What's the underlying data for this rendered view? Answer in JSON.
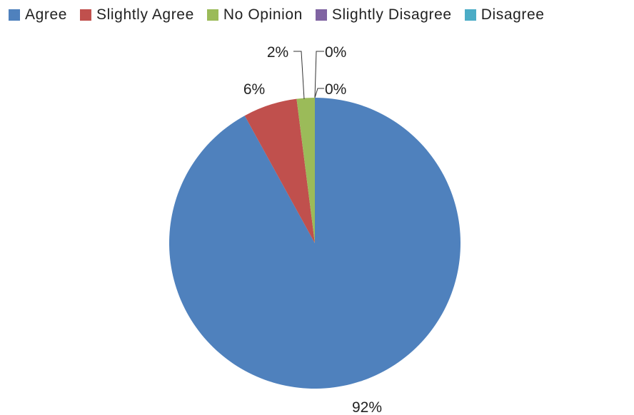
{
  "chart_data": {
    "type": "pie",
    "title": "",
    "categories": [
      "Agree",
      "Slightly Agree",
      "No Opinion",
      "Slightly Disagree",
      "Disagree"
    ],
    "values": [
      92,
      6,
      2,
      0,
      0
    ],
    "labels": [
      "92%",
      "6%",
      "2%",
      "0%",
      "0%"
    ],
    "colors": [
      "#4F81BD",
      "#C0504D",
      "#9BBB59",
      "#8064A2",
      "#4BACC6"
    ],
    "legend_position": "top",
    "start_angle_deg": 0,
    "direction": "clockwise"
  }
}
